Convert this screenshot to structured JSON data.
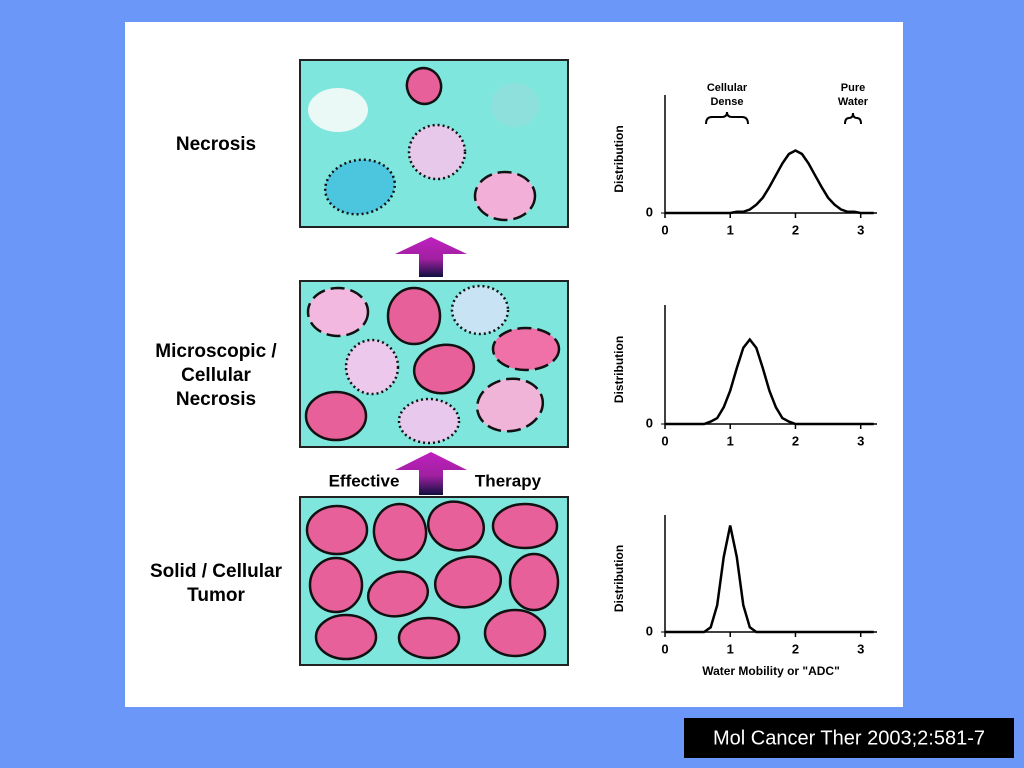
{
  "stages": [
    {
      "lines": [
        "Necrosis"
      ]
    },
    {
      "lines": [
        "Microscopic /",
        "Cellular",
        "Necrosis"
      ]
    },
    {
      "lines": [
        "Solid / Cellular",
        "Tumor"
      ]
    }
  ],
  "arrow_labels": [
    "Effective",
    "Therapy"
  ],
  "chart_data": [
    {
      "type": "line",
      "y_label": "Distribution",
      "annotations": [
        {
          "lines": [
            "Cellular",
            "Dense"
          ]
        },
        {
          "lines": [
            "Pure",
            "Water"
          ]
        }
      ],
      "x": [
        0,
        0.1,
        0.2,
        0.3,
        0.4,
        0.5,
        0.6,
        0.7,
        0.8,
        0.9,
        1,
        1.1,
        1.2,
        1.3,
        1.4,
        1.5,
        1.6,
        1.7,
        1.8,
        1.9,
        2,
        2.1,
        2.2,
        2.3,
        2.4,
        2.5,
        2.6,
        2.7,
        2.8,
        2.9,
        3,
        3.1,
        3.2
      ],
      "values": [
        0,
        0,
        0,
        0,
        0,
        0,
        0,
        0,
        0,
        0,
        0,
        0.01,
        0.01,
        0.03,
        0.07,
        0.13,
        0.22,
        0.32,
        0.42,
        0.5,
        0.53,
        0.5,
        0.42,
        0.32,
        0.22,
        0.13,
        0.07,
        0.03,
        0.01,
        0.01,
        0,
        0,
        0
      ],
      "color": "#000000",
      "xlim": [
        0,
        3.25
      ],
      "ylim": [
        0,
        1
      ],
      "xticks": [
        0,
        1,
        2,
        3
      ],
      "yticks": [
        0
      ]
    },
    {
      "type": "line",
      "y_label": "Distribution",
      "x": [
        0,
        0.1,
        0.2,
        0.3,
        0.4,
        0.5,
        0.6,
        0.7,
        0.8,
        0.9,
        1,
        1.1,
        1.2,
        1.3,
        1.4,
        1.5,
        1.6,
        1.7,
        1.8,
        1.9,
        2,
        2.1,
        2.2,
        2.3,
        2.4,
        2.5,
        2.6,
        2.7,
        2.8,
        2.9,
        3,
        3.1,
        3.2
      ],
      "values": [
        0,
        0,
        0,
        0,
        0,
        0,
        0,
        0.02,
        0.05,
        0.14,
        0.28,
        0.47,
        0.64,
        0.71,
        0.64,
        0.47,
        0.28,
        0.14,
        0.05,
        0.02,
        0,
        0,
        0,
        0,
        0,
        0,
        0,
        0,
        0,
        0,
        0,
        0,
        0
      ],
      "color": "#000000",
      "xlim": [
        0,
        3.25
      ],
      "ylim": [
        0,
        1
      ],
      "xticks": [
        0,
        1,
        2,
        3
      ],
      "yticks": [
        0
      ]
    },
    {
      "type": "line",
      "y_label": "Distribution",
      "x_label": "Water Mobility or \"ADC\"",
      "x": [
        0,
        0.1,
        0.2,
        0.3,
        0.4,
        0.5,
        0.6,
        0.7,
        0.8,
        0.9,
        1,
        1.1,
        1.2,
        1.3,
        1.4,
        1.5,
        1.6,
        1.7,
        1.8,
        1.9,
        2,
        2.1,
        2.2,
        2.3,
        2.4,
        2.5,
        2.6,
        2.7,
        2.8,
        2.9,
        3,
        3.1,
        3.2
      ],
      "values": [
        0,
        0,
        0,
        0,
        0,
        0,
        0,
        0.04,
        0.23,
        0.64,
        0.91,
        0.64,
        0.23,
        0.04,
        0,
        0,
        0,
        0,
        0,
        0,
        0,
        0,
        0,
        0,
        0,
        0,
        0,
        0,
        0,
        0,
        0,
        0,
        0
      ],
      "color": "#000000",
      "xlim": [
        0,
        3.25
      ],
      "ylim": [
        0,
        1
      ],
      "xticks": [
        0,
        1,
        2,
        3
      ],
      "yticks": [
        0
      ]
    }
  ],
  "citation": "Mol Cancer Ther 2003;2:581-7"
}
